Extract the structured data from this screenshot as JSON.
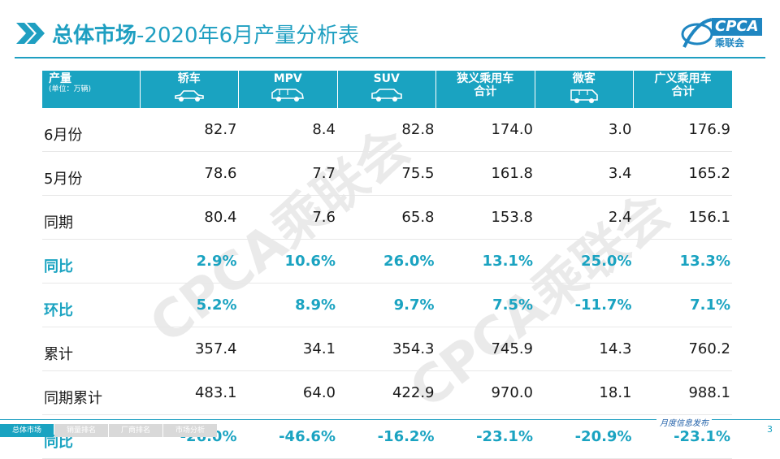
{
  "title": {
    "bold": "总体市场",
    "rest": "-2020年6月产量分析表"
  },
  "logo": {
    "text": "CPCA",
    "sub": "乘联会"
  },
  "watermark": "CPCA乘联会",
  "table": {
    "row_header": {
      "main": "产量",
      "sub": "(单位：万辆)"
    },
    "columns": [
      {
        "line1": "轿车",
        "line2": "",
        "icon": "sedan-icon"
      },
      {
        "line1": "MPV",
        "line2": "",
        "icon": "mpv-icon"
      },
      {
        "line1": "SUV",
        "line2": "",
        "icon": "suv-icon"
      },
      {
        "line1": "狭义乘用车",
        "line2": "合计",
        "icon": ""
      },
      {
        "line1": "微客",
        "line2": "",
        "icon": "van-icon"
      },
      {
        "line1": "广义乘用车",
        "line2": "合计",
        "icon": ""
      }
    ],
    "rows": [
      {
        "label": "6月份",
        "values": [
          "82.7",
          "8.4",
          "82.8",
          "174.0",
          "3.0",
          "176.9"
        ],
        "highlight": false
      },
      {
        "label": "5月份",
        "values": [
          "78.6",
          "7.7",
          "75.5",
          "161.8",
          "3.4",
          "165.2"
        ],
        "highlight": false
      },
      {
        "label": "同期",
        "values": [
          "80.4",
          "7.6",
          "65.8",
          "153.8",
          "2.4",
          "156.1"
        ],
        "highlight": false
      },
      {
        "label": "同比",
        "values": [
          "2.9%",
          "10.6%",
          "26.0%",
          "13.1%",
          "25.0%",
          "13.3%"
        ],
        "highlight": true
      },
      {
        "label": "环比",
        "values": [
          "5.2%",
          "8.9%",
          "9.7%",
          "7.5%",
          "-11.7%",
          "7.1%"
        ],
        "highlight": true
      },
      {
        "label": "累计",
        "values": [
          "357.4",
          "34.1",
          "354.3",
          "745.9",
          "14.3",
          "760.2"
        ],
        "highlight": false
      },
      {
        "label": "同期累计",
        "values": [
          "483.1",
          "64.0",
          "422.9",
          "970.0",
          "18.1",
          "988.1"
        ],
        "highlight": false
      },
      {
        "label": "同比",
        "values": [
          "-26.0%",
          "-46.6%",
          "-16.2%",
          "-23.1%",
          "-20.9%",
          "-23.1%"
        ],
        "highlight": true
      }
    ]
  },
  "footer": {
    "tabs": [
      "总体市场",
      "销量排名",
      "厂商排名",
      "市场分析"
    ],
    "active_tab": 0,
    "right_text": "月度信息发布",
    "page_number": "3"
  },
  "colors": {
    "accent": "#1aa3c1",
    "title": "#1f9fc1"
  }
}
